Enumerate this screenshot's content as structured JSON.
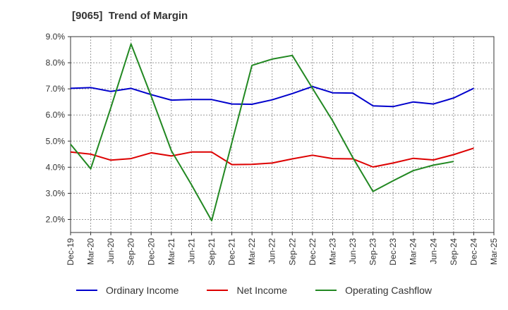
{
  "chart_data": {
    "type": "line",
    "title": "[9065]  Trend of Margin",
    "categories": [
      "Dec-19",
      "Mar-20",
      "Jun-20",
      "Sep-20",
      "Dec-20",
      "Mar-21",
      "Jun-21",
      "Sep-21",
      "Dec-21",
      "Mar-22",
      "Jun-22",
      "Sep-22",
      "Dec-22",
      "Mar-23",
      "Jun-23",
      "Sep-23",
      "Dec-23",
      "Mar-24",
      "Jun-24",
      "Sep-24",
      "Dec-24",
      "Mar-25"
    ],
    "y_ticks": [
      "9.0%",
      "8.0%",
      "7.0%",
      "6.0%",
      "5.0%",
      "4.0%",
      "3.0%",
      "2.0%"
    ],
    "ylim": [
      1.5,
      9.0
    ],
    "grid": true,
    "legend_position": "bottom",
    "series": [
      {
        "name": "Ordinary Income",
        "color": "#0000cc",
        "values": [
          7.02,
          7.05,
          6.9,
          7.02,
          6.78,
          6.57,
          6.59,
          6.59,
          6.42,
          6.41,
          6.58,
          6.82,
          7.09,
          6.85,
          6.84,
          6.35,
          6.32,
          6.5,
          6.42,
          6.65,
          7.02,
          null
        ]
      },
      {
        "name": "Net Income",
        "color": "#dd0000",
        "values": [
          4.58,
          4.5,
          4.27,
          4.33,
          4.55,
          4.43,
          4.58,
          4.58,
          4.1,
          4.11,
          4.16,
          4.32,
          4.46,
          4.33,
          4.32,
          4.01,
          4.16,
          4.34,
          4.28,
          4.48,
          4.73,
          null
        ]
      },
      {
        "name": "Operating Cashflow",
        "color": "#228822",
        "values": [
          4.88,
          3.94,
          6.28,
          8.72,
          6.72,
          4.63,
          3.33,
          1.95,
          4.94,
          7.9,
          8.14,
          8.28,
          7.02,
          5.78,
          4.37,
          3.07,
          3.48,
          3.87,
          4.08,
          4.22,
          null,
          null
        ]
      }
    ]
  }
}
